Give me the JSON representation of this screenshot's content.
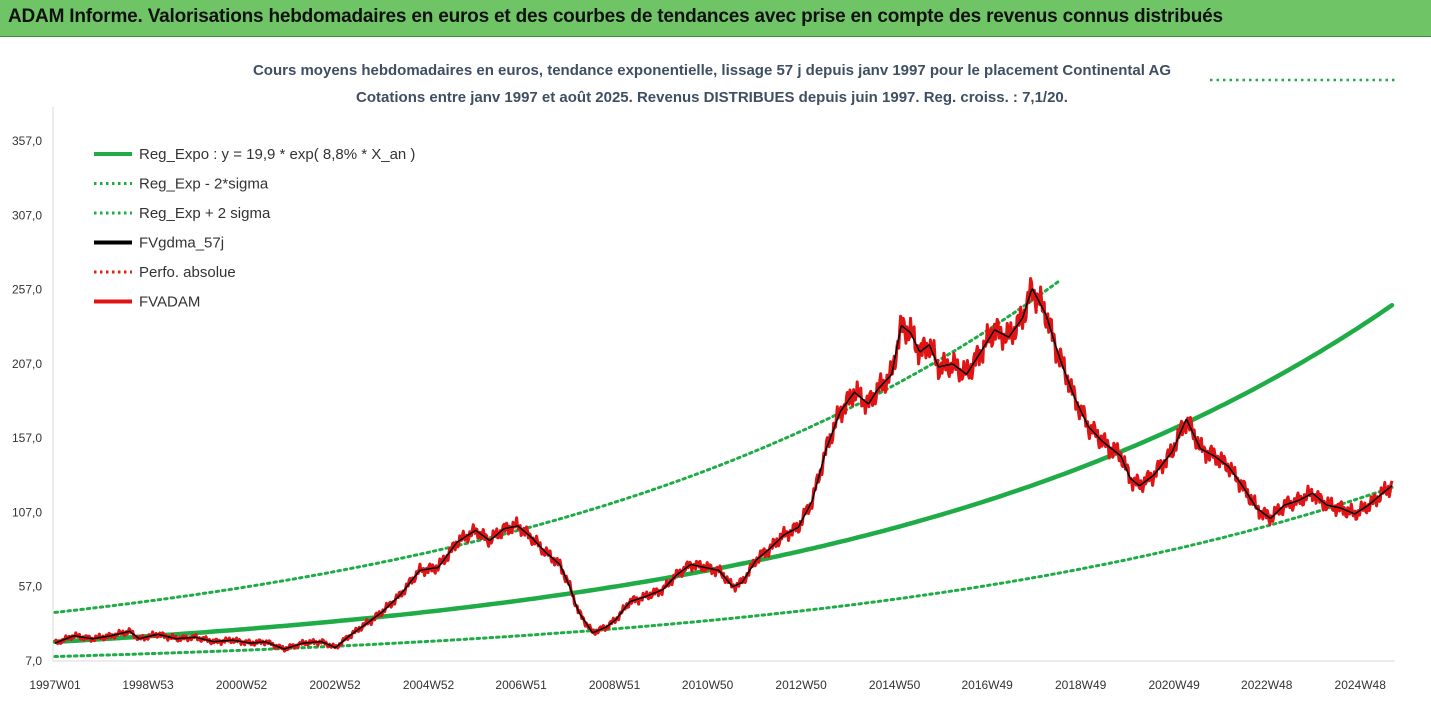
{
  "header": {
    "title": "ADAM Informe. Valorisations hebdomadaires en euros et des courbes de tendances avec prise en compte des revenus connus distribués"
  },
  "chart_data": {
    "type": "line",
    "subtitle_line1": "Cours moyens hebdomadaires en euros, tendance exponentielle, lissage 57 j depuis janv 1997 pour le placement Continental AG",
    "subtitle_line2": "Cotations entre janv 1997 et août 2025. Revenus DISTRIBUES depuis juin 1997. Reg. croiss. : 7,1/20.",
    "ylim": [
      7,
      380
    ],
    "yticks": [
      7,
      57,
      107,
      157,
      207,
      257,
      307,
      357
    ],
    "ytick_labels": [
      "7,0",
      "57,0",
      "107,0",
      "157,0",
      "207,0",
      "257,0",
      "307,0",
      "357,0"
    ],
    "xlim": [
      1997.0,
      2025.6
    ],
    "xticks": [
      1997.0,
      1998.99,
      2000.99,
      2002.99,
      2004.99,
      2006.97,
      2008.97,
      2010.96,
      2012.96,
      2014.96,
      2016.94,
      2018.94,
      2020.94,
      2022.92,
      2024.92
    ],
    "xtick_labels": [
      "1997W01",
      "1998W53",
      "2000W52",
      "2002W52",
      "2004W52",
      "2006W51",
      "2008W51",
      "2010W50",
      "2012W50",
      "2014W50",
      "2016W49",
      "2018W49",
      "2020W49",
      "2022W48",
      "2024W48"
    ],
    "grid": false,
    "legend_position": "top-left",
    "series": [
      {
        "name": "Reg_Expo : y = 19,9 * exp( 8,8% *  X_an )",
        "color": "#1fac47",
        "style": "solid",
        "kind": "trend",
        "a": 19.9,
        "r": 0.088,
        "x_end": 2025.6
      },
      {
        "name": "Reg_Exp - 2*sigma",
        "color": "#1fac47",
        "style": "dotted",
        "kind": "trend",
        "a": 10.0,
        "r": 0.088,
        "x_end": 2025.6
      },
      {
        "name": "Reg_Exp + 2 sigma",
        "color": "#1fac47",
        "style": "dotted",
        "kind": "trend",
        "a": 39.7,
        "r": 0.088,
        "x_end": 2018.45,
        "cap": 380
      },
      {
        "name": "FVgdma_57j",
        "color": "#000000",
        "style": "solid",
        "kind": "data"
      },
      {
        "name": "Perfo. absolue",
        "color": "#e0201a",
        "style": "dotted",
        "kind": "none"
      },
      {
        "name": "FVADAM",
        "color": "#e01414",
        "style": "solid",
        "kind": "data"
      }
    ],
    "price_points": {
      "x": [
        1997.0,
        1997.4,
        1997.8,
        1998.2,
        1998.6,
        1998.8,
        1999.2,
        1999.6,
        2000.0,
        2000.4,
        2000.8,
        2001.2,
        2001.5,
        2001.9,
        2002.3,
        2002.7,
        2003.0,
        2003.3,
        2003.7,
        2004.0,
        2004.4,
        2004.8,
        2005.2,
        2005.6,
        2006.0,
        2006.3,
        2006.6,
        2006.9,
        2007.2,
        2007.5,
        2007.8,
        2008.0,
        2008.2,
        2008.5,
        2008.8,
        2009.0,
        2009.3,
        2009.6,
        2010.0,
        2010.3,
        2010.6,
        2010.9,
        2011.2,
        2011.5,
        2011.7,
        2012.0,
        2012.3,
        2012.6,
        2012.9,
        2013.2,
        2013.5,
        2013.8,
        2014.1,
        2014.4,
        2014.6,
        2014.9,
        2015.1,
        2015.3,
        2015.5,
        2015.7,
        2015.9,
        2016.2,
        2016.5,
        2016.8,
        2017.1,
        2017.4,
        2017.7,
        2017.9,
        2018.2,
        2018.5,
        2018.8,
        2019.1,
        2019.4,
        2019.8,
        2020.0,
        2020.2,
        2020.5,
        2020.9,
        2021.2,
        2021.5,
        2021.8,
        2022.1,
        2022.4,
        2022.7,
        2023.0,
        2023.3,
        2023.6,
        2023.9,
        2024.2,
        2024.5,
        2024.8,
        2025.1,
        2025.4,
        2025.6
      ],
      "y": [
        19,
        24,
        22,
        24,
        27,
        22,
        25,
        22,
        23,
        20,
        21,
        19,
        20,
        15,
        19,
        20,
        16,
        24,
        33,
        40,
        52,
        68,
        70,
        87,
        95,
        88,
        96,
        98,
        90,
        80,
        72,
        58,
        40,
        26,
        30,
        35,
        47,
        50,
        55,
        65,
        72,
        70,
        68,
        57,
        60,
        75,
        83,
        92,
        97,
        115,
        150,
        175,
        188,
        180,
        190,
        200,
        233,
        228,
        215,
        220,
        205,
        207,
        200,
        215,
        230,
        225,
        238,
        258,
        240,
        210,
        185,
        165,
        155,
        145,
        130,
        125,
        132,
        148,
        170,
        150,
        145,
        138,
        125,
        110,
        103,
        112,
        115,
        120,
        112,
        110,
        106,
        112,
        120,
        125
      ]
    }
  }
}
